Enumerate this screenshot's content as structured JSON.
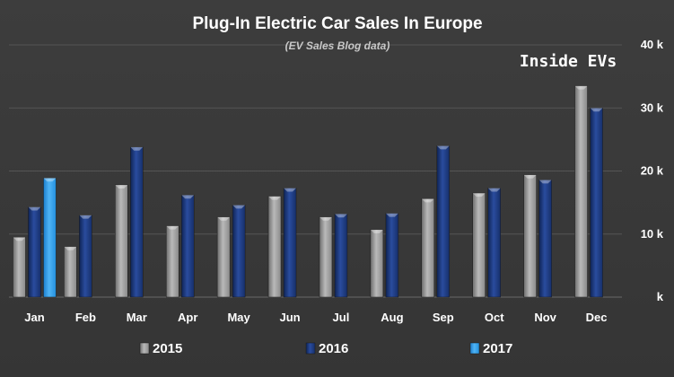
{
  "chart_data": {
    "type": "bar",
    "title": "Plug-In Electric Car Sales In Europe",
    "subtitle": "(EV Sales Blog data)",
    "watermark": "Inside EVs",
    "categories": [
      "Jan",
      "Feb",
      "Mar",
      "Apr",
      "May",
      "Jun",
      "Jul",
      "Aug",
      "Sep",
      "Oct",
      "Nov",
      "Dec"
    ],
    "series": [
      {
        "name": "2015",
        "color": "#9a9a9a",
        "values": [
          9500,
          8000,
          17800,
          11300,
          12700,
          16000,
          12700,
          10700,
          15600,
          16500,
          19400,
          33500
        ]
      },
      {
        "name": "2016",
        "color": "#1a3a80",
        "values": [
          14300,
          13000,
          23800,
          16200,
          14600,
          17300,
          13200,
          13300,
          24000,
          17300,
          18600,
          30000
        ]
      },
      {
        "name": "2017",
        "color": "#2a9be8",
        "values": [
          18900,
          null,
          null,
          null,
          null,
          null,
          null,
          null,
          null,
          null,
          null,
          null
        ]
      }
    ],
    "y_ticks": [
      {
        "value": 0,
        "label": "k"
      },
      {
        "value": 10000,
        "label": "10 k"
      },
      {
        "value": 20000,
        "label": "20 k"
      },
      {
        "value": 30000,
        "label": "30 k"
      },
      {
        "value": 40000,
        "label": "40 k"
      }
    ],
    "ylim": [
      0,
      40000
    ],
    "xlabel": "",
    "ylabel": "",
    "grid": true,
    "legend_position": "bottom"
  },
  "colors": {
    "background": "#3a3a3a",
    "gridline": "#555555",
    "text": "#ffffff",
    "subtitle": "#c8c8c8"
  }
}
